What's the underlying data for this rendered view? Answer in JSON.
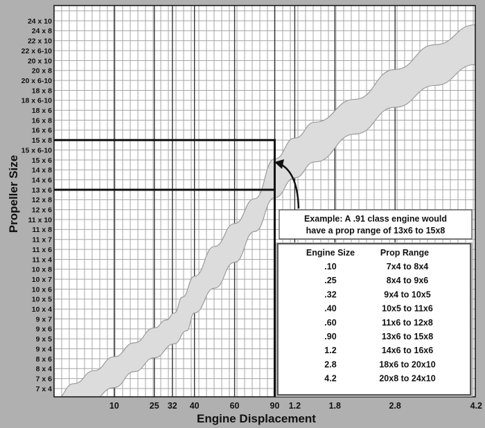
{
  "chart_data": {
    "type": "area",
    "title": "",
    "xlabel": "Engine Displacement",
    "ylabel": "Propeller Size",
    "x_ticks": [
      {
        "label": "10",
        "index": 1
      },
      {
        "label": "25",
        "index": 2
      },
      {
        "label": "32",
        "index": 2.45
      },
      {
        "label": "40",
        "index": 3
      },
      {
        "label": "60",
        "index": 4
      },
      {
        "label": "90",
        "index": 5
      },
      {
        "label": "1.2",
        "index": 5.5
      },
      {
        "label": "1.8",
        "index": 6.5
      },
      {
        "label": "2.8",
        "index": 8
      },
      {
        "label": "4.2",
        "index": 10
      }
    ],
    "x_index_range": [
      -0.5,
      10
    ],
    "y_ticks": [
      "7 x 4",
      "7 x 6",
      "8 x 4",
      "8 x 6",
      "9 x 4",
      "9 x 5",
      "9 x 6",
      "9 x 7",
      "10 x 4",
      "10 x 5",
      "10 x 6",
      "10 x 7",
      "10 x 8",
      "11 x 4",
      "11 x 6",
      "11 x 7",
      "11 x 8",
      "11 x 10",
      "12 x 6",
      "12 x 8",
      "13 x 6",
      "14 x 6",
      "14 x 8",
      "15 x 6",
      "15 x 6-10",
      "15 x 8",
      "16 x 6",
      "16 x 8",
      "18 x 6",
      "18 x 6-10",
      "18 x 8",
      "20 x 6-10",
      "20 x 8",
      "20 x 10",
      "22 x 6-10",
      "22 x 10",
      "24 x 8",
      "24 x 10"
    ],
    "series": [
      {
        "role": "upper-bound",
        "points": [
          [
            -0.5,
            -1.3
          ],
          [
            0,
            0.5
          ],
          [
            0.5,
            1.8
          ],
          [
            1,
            3.2
          ],
          [
            1.5,
            4.6
          ],
          [
            2,
            6.1
          ],
          [
            2.3,
            6.9
          ],
          [
            2.5,
            7.6
          ],
          [
            2.7,
            9.2
          ],
          [
            3,
            11.3
          ],
          [
            3.5,
            14.3
          ],
          [
            4,
            16.6
          ],
          [
            4.5,
            19.1
          ],
          [
            5,
            23.1
          ],
          [
            5.5,
            25.2
          ],
          [
            6,
            26.8
          ],
          [
            7,
            29.1
          ],
          [
            8,
            32.1
          ],
          [
            9,
            34.6
          ],
          [
            10,
            36.6
          ]
        ]
      },
      {
        "role": "lower-bound",
        "points": [
          [
            0.4,
            -1.3
          ],
          [
            1,
            0.1
          ],
          [
            1.5,
            1.7
          ],
          [
            2,
            3.1
          ],
          [
            2.5,
            4.5
          ],
          [
            2.8,
            5.8
          ],
          [
            3,
            7.6
          ],
          [
            3.5,
            10.1
          ],
          [
            4,
            12.7
          ],
          [
            4.5,
            15.8
          ],
          [
            5,
            19.2
          ],
          [
            5.5,
            21.2
          ],
          [
            6,
            22.8
          ],
          [
            7,
            25.6
          ],
          [
            8,
            28.3
          ],
          [
            9,
            30.5
          ],
          [
            10,
            32.6
          ]
        ]
      }
    ],
    "example_marker": {
      "x_index": 5,
      "y_low": 20,
      "y_high": 25
    },
    "grid": true,
    "annotation": {
      "lines": [
        "Example: A .91 class engine would",
        "have a prop range of 13x6 to 15x8"
      ]
    },
    "table": {
      "headers": [
        "Engine Size",
        "Prop Range"
      ],
      "rows": [
        [
          ".10",
          "7x4 to 8x4"
        ],
        [
          ".25",
          "8x4 to 9x6"
        ],
        [
          ".32",
          "9x4 to 10x5"
        ],
        [
          ".40",
          "10x5 to 11x6"
        ],
        [
          ".60",
          "11x6 to 12x8"
        ],
        [
          ".90",
          "13x6 to 15x8"
        ],
        [
          "1.2",
          "14x6 to 16x6"
        ],
        [
          "2.8",
          "18x6 to 20x10"
        ],
        [
          "4.2",
          "20x8 to 24x10"
        ]
      ]
    },
    "colors": {
      "background": "#b0b0b0",
      "plot": "#ffffff",
      "grid": "#a6a6a6",
      "band": "#dcdcdc",
      "band_edge": "#9a9a9a",
      "ink": "#111111"
    }
  }
}
